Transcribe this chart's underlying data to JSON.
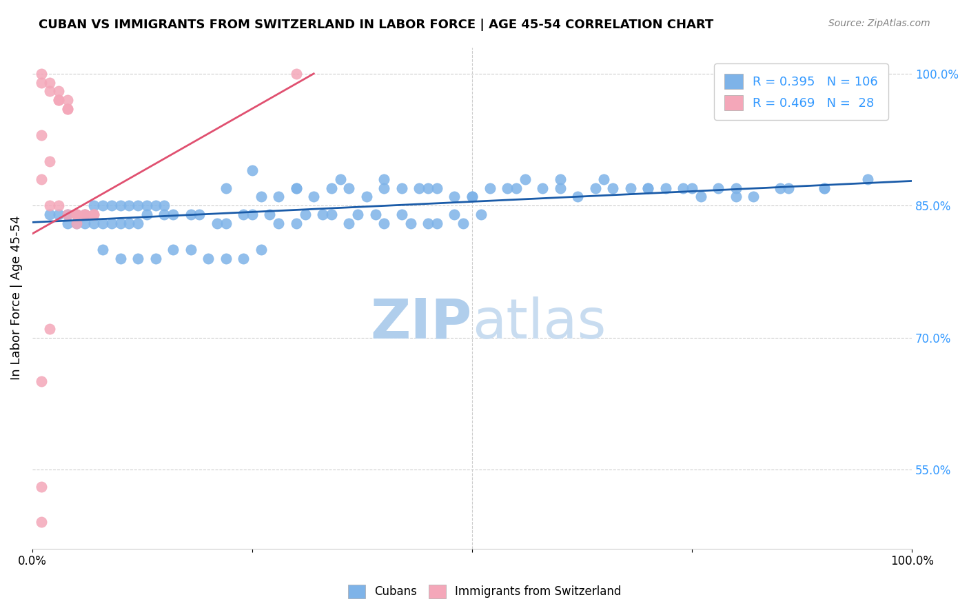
{
  "title": "CUBAN VS IMMIGRANTS FROM SWITZERLAND IN LABOR FORCE | AGE 45-54 CORRELATION CHART",
  "source": "Source: ZipAtlas.com",
  "xlabel": "",
  "ylabel": "In Labor Force | Age 45-54",
  "xlim": [
    0.0,
    1.0
  ],
  "ylim": [
    0.46,
    1.03
  ],
  "right_yticks": [
    1.0,
    0.85,
    0.7,
    0.55
  ],
  "right_yticklabels": [
    "100.0%",
    "85.0%",
    "70.0%",
    "55.0%"
  ],
  "blue_R": 0.395,
  "blue_N": 106,
  "pink_R": 0.469,
  "pink_N": 28,
  "blue_scatter_x": [
    0.02,
    0.03,
    0.04,
    0.05,
    0.06,
    0.07,
    0.08,
    0.09,
    0.1,
    0.11,
    0.12,
    0.13,
    0.14,
    0.15,
    0.04,
    0.05,
    0.06,
    0.07,
    0.08,
    0.09,
    0.1,
    0.11,
    0.12,
    0.25,
    0.3,
    0.35,
    0.4,
    0.45,
    0.5,
    0.55,
    0.6,
    0.65,
    0.7,
    0.75,
    0.8,
    0.85,
    0.9,
    0.95,
    0.28,
    0.32,
    0.36,
    0.4,
    0.44,
    0.48,
    0.52,
    0.56,
    0.6,
    0.64,
    0.68,
    0.72,
    0.76,
    0.8,
    0.22,
    0.26,
    0.3,
    0.34,
    0.38,
    0.42,
    0.46,
    0.5,
    0.54,
    0.58,
    0.62,
    0.66,
    0.7,
    0.74,
    0.78,
    0.82,
    0.86,
    0.9,
    0.15,
    0.18,
    0.21,
    0.24,
    0.27,
    0.3,
    0.33,
    0.36,
    0.39,
    0.42,
    0.45,
    0.48,
    0.51,
    0.13,
    0.16,
    0.19,
    0.22,
    0.25,
    0.28,
    0.31,
    0.34,
    0.37,
    0.4,
    0.43,
    0.46,
    0.49,
    0.08,
    0.1,
    0.12,
    0.14,
    0.16,
    0.18,
    0.2,
    0.22,
    0.24,
    0.26
  ],
  "blue_scatter_y": [
    0.84,
    0.84,
    0.84,
    0.84,
    0.84,
    0.85,
    0.85,
    0.85,
    0.85,
    0.85,
    0.85,
    0.85,
    0.85,
    0.85,
    0.83,
    0.83,
    0.83,
    0.83,
    0.83,
    0.83,
    0.83,
    0.83,
    0.83,
    0.89,
    0.87,
    0.88,
    0.88,
    0.87,
    0.86,
    0.87,
    0.88,
    0.88,
    0.87,
    0.87,
    0.86,
    0.87,
    0.87,
    0.88,
    0.86,
    0.86,
    0.87,
    0.87,
    0.87,
    0.86,
    0.87,
    0.88,
    0.87,
    0.87,
    0.87,
    0.87,
    0.86,
    0.87,
    0.87,
    0.86,
    0.87,
    0.87,
    0.86,
    0.87,
    0.87,
    0.86,
    0.87,
    0.87,
    0.86,
    0.87,
    0.87,
    0.87,
    0.87,
    0.86,
    0.87,
    0.87,
    0.84,
    0.84,
    0.83,
    0.84,
    0.84,
    0.83,
    0.84,
    0.83,
    0.84,
    0.84,
    0.83,
    0.84,
    0.84,
    0.84,
    0.84,
    0.84,
    0.83,
    0.84,
    0.83,
    0.84,
    0.84,
    0.84,
    0.83,
    0.83,
    0.83,
    0.83,
    0.8,
    0.79,
    0.79,
    0.79,
    0.8,
    0.8,
    0.79,
    0.79,
    0.79,
    0.8
  ],
  "pink_scatter_x": [
    0.01,
    0.01,
    0.02,
    0.02,
    0.03,
    0.03,
    0.03,
    0.04,
    0.04,
    0.04,
    0.04,
    0.05,
    0.05,
    0.05,
    0.06,
    0.06,
    0.07,
    0.07,
    0.3,
    0.01,
    0.02,
    0.01,
    0.02,
    0.03,
    0.01,
    0.01,
    0.02,
    0.01
  ],
  "pink_scatter_y": [
    1.0,
    0.99,
    0.99,
    0.98,
    0.98,
    0.97,
    0.97,
    0.97,
    0.96,
    0.96,
    0.84,
    0.84,
    0.84,
    0.83,
    0.84,
    0.84,
    0.84,
    0.84,
    1.0,
    0.93,
    0.9,
    0.88,
    0.85,
    0.85,
    0.53,
    0.49,
    0.71,
    0.65
  ],
  "blue_line_x": [
    0.0,
    1.0
  ],
  "blue_line_y": [
    0.831,
    0.878
  ],
  "pink_line_x": [
    0.0,
    0.32
  ],
  "pink_line_y": [
    0.818,
    1.0
  ],
  "blue_color": "#7EB3E8",
  "pink_color": "#F4A7B9",
  "blue_line_color": "#1A5BA8",
  "pink_line_color": "#E05070",
  "watermark_zip": "ZIP",
  "watermark_atlas": "atlas",
  "watermark_color_zip": "#B0CEEC",
  "watermark_color_atlas": "#C8DCF0",
  "legend_blue_label": "R = 0.395   N = 106",
  "legend_pink_label": "R = 0.469   N =  28",
  "bottom_legend_labels": [
    "Cubans",
    "Immigrants from Switzerland"
  ]
}
